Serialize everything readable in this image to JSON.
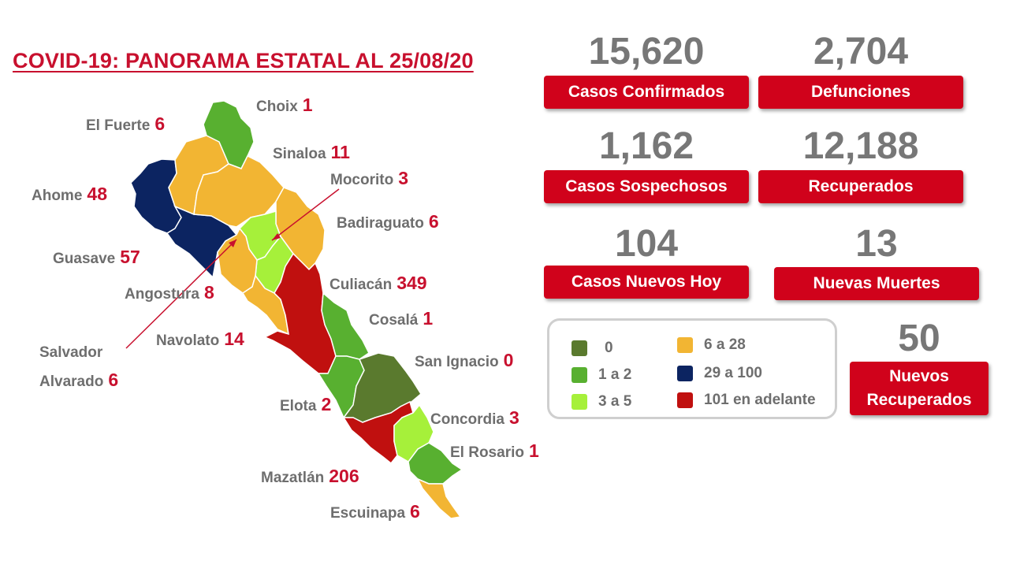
{
  "title": "COVID-19: PANORAMA ESTATAL AL 25/08/20",
  "colors": {
    "c0": "#5a7a2e",
    "c1_2": "#58b030",
    "c3_5": "#a6f03a",
    "c6_28": "#f2b533",
    "c29_100": "#0c2461",
    "c101": "#c0100f",
    "accent": "#d0021b"
  },
  "stats": [
    {
      "value": "15,620",
      "label": "Casos Confirmados"
    },
    {
      "value": "2,704",
      "label": "Defunciones"
    },
    {
      "value": "1,162",
      "label": "Casos Sospechosos"
    },
    {
      "value": "12,188",
      "label": "Recuperados"
    },
    {
      "value": "104",
      "label": "Casos Nuevos Hoy"
    },
    {
      "value": "13",
      "label": "Nuevas Muertes"
    },
    {
      "value": "50",
      "label_line1": "Nuevos",
      "label_line2": "Recuperados"
    }
  ],
  "legend": [
    {
      "label": "0",
      "color": "#5a7a2e"
    },
    {
      "label": "1 a 2",
      "color": "#58b030"
    },
    {
      "label": "3 a 5",
      "color": "#a6f03a"
    },
    {
      "label": "6 a 28",
      "color": "#f2b533"
    },
    {
      "label": "29 a 100",
      "color": "#0c2461"
    },
    {
      "label": "101 en adelante",
      "color": "#c0100f"
    }
  ],
  "municipalities": [
    {
      "name": "Choix",
      "cases": "1"
    },
    {
      "name": "El Fuerte",
      "cases": "6"
    },
    {
      "name": "Sinaloa",
      "cases": "11"
    },
    {
      "name": "Mocorito",
      "cases": "3"
    },
    {
      "name": "Ahome",
      "cases": "48"
    },
    {
      "name": "Badiraguato",
      "cases": "6"
    },
    {
      "name": "Guasave",
      "cases": "57"
    },
    {
      "name": "Angostura",
      "cases": "8"
    },
    {
      "name": "Culiacán",
      "cases": "349"
    },
    {
      "name": "Cosalá",
      "cases": "1"
    },
    {
      "name": "Salvador",
      "name_line2": "Alvarado",
      "cases": "6"
    },
    {
      "name": "Navolato",
      "cases": "14"
    },
    {
      "name": "San Ignacio",
      "cases": "0"
    },
    {
      "name": "Elota",
      "cases": "2"
    },
    {
      "name": "Concordia",
      "cases": "3"
    },
    {
      "name": "El Rosario",
      "cases": "1"
    },
    {
      "name": "Mazatlán",
      "cases": "206"
    },
    {
      "name": "Escuinapa",
      "cases": "6"
    }
  ]
}
